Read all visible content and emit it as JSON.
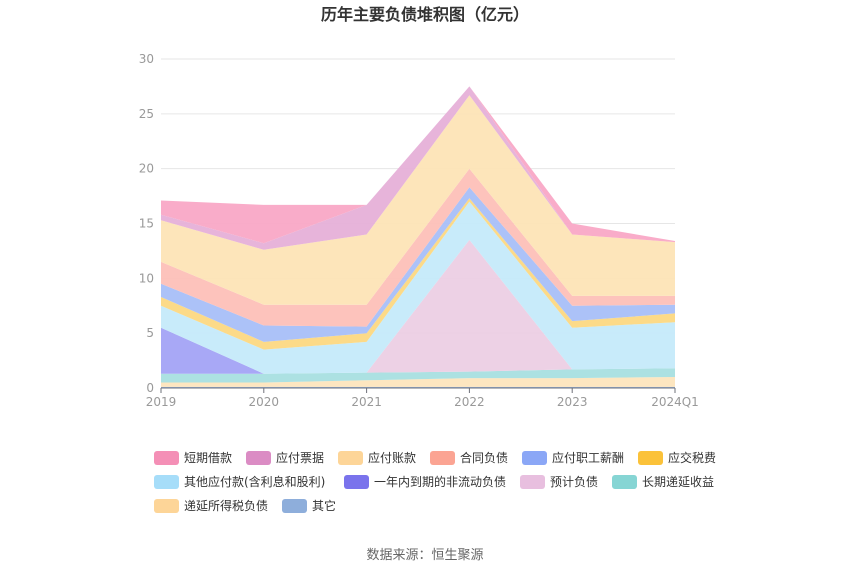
{
  "chart_data": {
    "type": "area",
    "stacked": true,
    "title": "历年主要负债堆积图（亿元）",
    "categories": [
      "2019",
      "2020",
      "2021",
      "2022",
      "2023",
      "2024Q1"
    ],
    "ylim": [
      0,
      30
    ],
    "yticks": [
      0,
      5,
      10,
      15,
      20,
      25,
      30
    ],
    "grid": true,
    "legend_position": "bottom",
    "series": [
      {
        "name": "其它",
        "color": "#8eaedb",
        "values": [
          0.1,
          0.1,
          0.1,
          0.1,
          0.1,
          0.1
        ]
      },
      {
        "name": "递延所得税负债",
        "color": "#fde5bd",
        "values": [
          0.4,
          0.4,
          0.6,
          0.8,
          0.8,
          0.9
        ]
      },
      {
        "name": "长期递延收益",
        "color": "#a8dfe0",
        "values": [
          0.8,
          0.8,
          0.7,
          0.6,
          0.8,
          0.8
        ]
      },
      {
        "name": "预计负债",
        "color": "#eccfe4",
        "values": [
          0.0,
          0.0,
          0.0,
          12.0,
          0.0,
          0.0
        ]
      },
      {
        "name": "一年内到期的非流动负债",
        "color": "#a3a3f5",
        "values": [
          4.2,
          0.0,
          0.0,
          0.0,
          0.0,
          0.0
        ]
      },
      {
        "name": "其他应付款(含利息和股利)",
        "color": "#c5eafa",
        "values": [
          2.0,
          2.2,
          2.8,
          3.5,
          3.8,
          4.2
        ]
      },
      {
        "name": "应交税费",
        "color": "#fcd882",
        "values": [
          0.8,
          0.7,
          0.8,
          0.3,
          0.6,
          0.8
        ]
      },
      {
        "name": "应付职工薪酬",
        "color": "#a8bff8",
        "values": [
          1.2,
          1.5,
          0.6,
          1.0,
          1.4,
          0.8
        ]
      },
      {
        "name": "合同负债",
        "color": "#fdc0b8",
        "values": [
          2.0,
          1.9,
          2.0,
          1.7,
          0.9,
          0.8
        ]
      },
      {
        "name": "应付账款",
        "color": "#fde4b6",
        "values": [
          3.8,
          5.0,
          6.4,
          6.7,
          5.6,
          4.9
        ]
      },
      {
        "name": "应付票据",
        "color": "#e6b0d8",
        "values": [
          0.5,
          0.6,
          2.7,
          0.8,
          0.0,
          0.0
        ]
      },
      {
        "name": "短期借款",
        "color": "#f9a8c6",
        "values": [
          1.3,
          3.5,
          0.0,
          0.0,
          1.0,
          0.1
        ]
      }
    ],
    "legend": [
      {
        "name": "短期借款",
        "color": "#f48fb6"
      },
      {
        "name": "应付票据",
        "color": "#db8cc4"
      },
      {
        "name": "应付账款",
        "color": "#fdd598"
      },
      {
        "name": "合同负债",
        "color": "#fba493"
      },
      {
        "name": "应付职工薪酬",
        "color": "#8ba7f6"
      },
      {
        "name": "应交税费",
        "color": "#fbc23a"
      },
      {
        "name": "其他应付款(含利息和股利)",
        "color": "#a6ddf9"
      },
      {
        "name": "一年内到期的非流动负债",
        "color": "#7a73ec"
      },
      {
        "name": "预计负债",
        "color": "#e8bfdf"
      },
      {
        "name": "长期递延收益",
        "color": "#86d5d4"
      },
      {
        "name": "递延所得税负债",
        "color": "#fdd598"
      },
      {
        "name": "其它",
        "color": "#8eaedb"
      }
    ]
  },
  "footer": {
    "source": "数据来源：恒生聚源"
  }
}
